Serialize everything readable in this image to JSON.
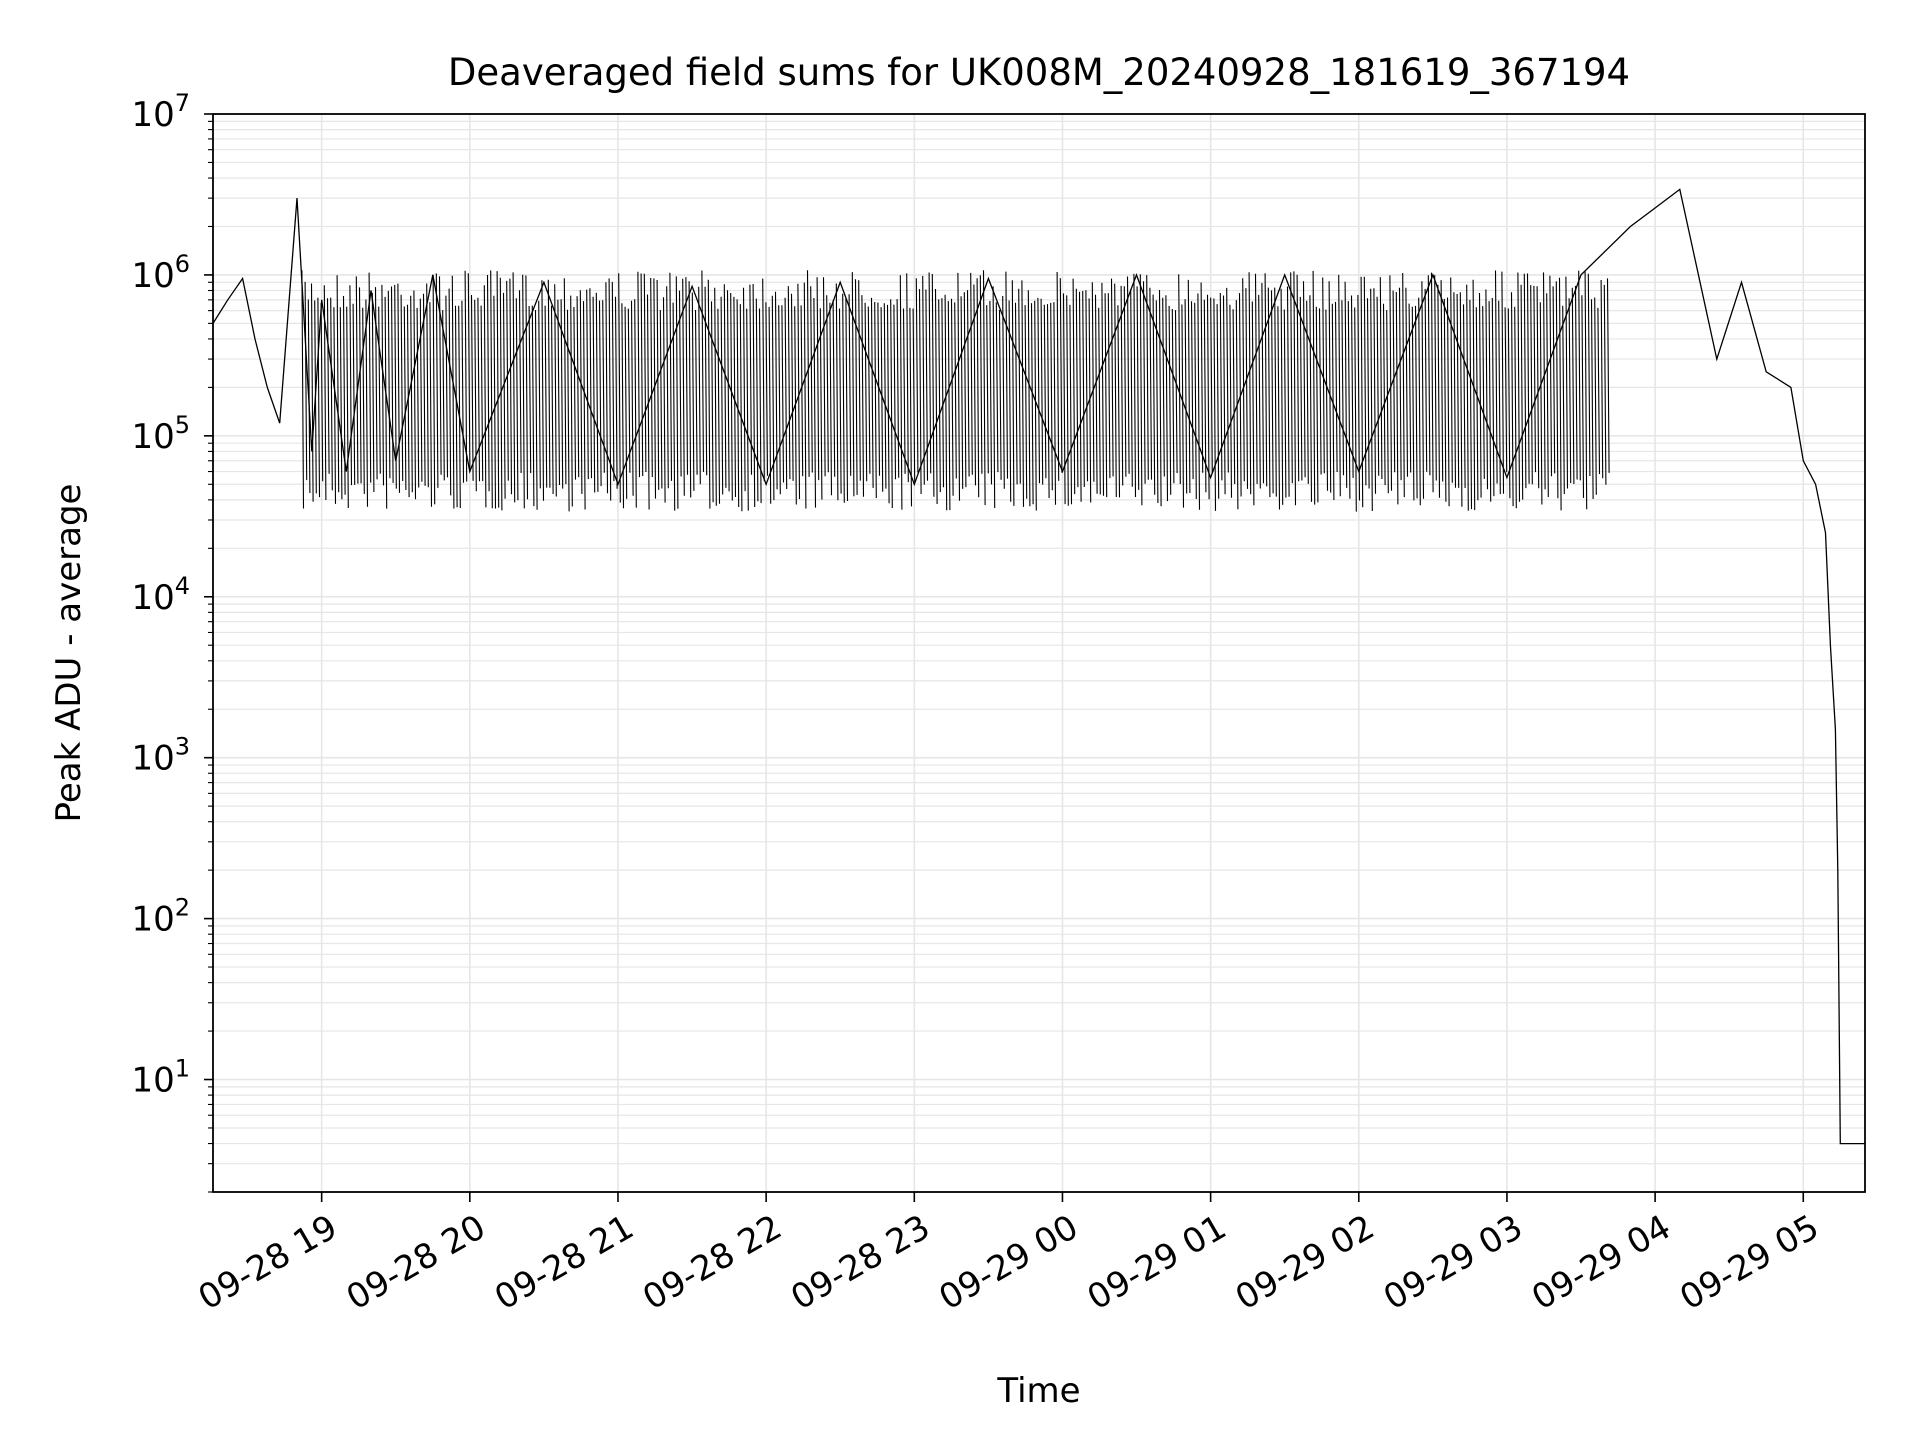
{
  "chart_data": {
    "type": "line",
    "title": "Deaveraged field sums for UK008M_20240928_181619_367194",
    "xlabel": "Time",
    "ylabel": "Peak ADU - average",
    "y_scale": "log",
    "ylim": [
      2,
      10000000
    ],
    "xlim": [
      "2024-09-28 18:16",
      "2024-09-29 05:25"
    ],
    "grid": true,
    "grid_color": "#e6e6e6",
    "line_color": "#000000",
    "x_ticks": [
      {
        "date": "2024-09-28 19:00",
        "label": "09-28 19"
      },
      {
        "date": "2024-09-28 20:00",
        "label": "09-28 20"
      },
      {
        "date": "2024-09-28 21:00",
        "label": "09-28 21"
      },
      {
        "date": "2024-09-28 22:00",
        "label": "09-28 22"
      },
      {
        "date": "2024-09-28 23:00",
        "label": "09-28 23"
      },
      {
        "date": "2024-09-29 00:00",
        "label": "09-29 00"
      },
      {
        "date": "2024-09-29 01:00",
        "label": "09-29 01"
      },
      {
        "date": "2024-09-29 02:00",
        "label": "09-29 02"
      },
      {
        "date": "2024-09-29 03:00",
        "label": "09-29 03"
      },
      {
        "date": "2024-09-29 04:00",
        "label": "09-29 04"
      },
      {
        "date": "2024-09-29 05:00",
        "label": "09-29 05"
      }
    ],
    "y_ticks": [
      {
        "value": 10,
        "base": "10",
        "exp": "1"
      },
      {
        "value": 100,
        "base": "10",
        "exp": "2"
      },
      {
        "value": 1000,
        "base": "10",
        "exp": "3"
      },
      {
        "value": 10000,
        "base": "10",
        "exp": "4"
      },
      {
        "value": 100000,
        "base": "10",
        "exp": "5"
      },
      {
        "value": 1000000,
        "base": "10",
        "exp": "6"
      },
      {
        "value": 10000000,
        "base": "10",
        "exp": "7"
      }
    ],
    "series": [
      {
        "x": [
          "2024-09-28 18:16",
          "2024-09-28 18:22",
          "2024-09-28 18:28",
          "2024-09-28 18:33",
          "2024-09-28 18:38",
          "2024-09-28 18:43",
          "2024-09-28 18:50",
          "2024-09-28 18:56",
          "2024-09-28 19:00",
          "2024-09-28 19:10",
          "2024-09-28 19:20",
          "2024-09-28 19:30",
          "2024-09-28 19:45",
          "2024-09-28 20:00",
          "2024-09-28 20:30",
          "2024-09-28 21:00",
          "2024-09-28 21:30",
          "2024-09-28 22:00",
          "2024-09-28 22:30",
          "2024-09-28 23:00",
          "2024-09-28 23:30",
          "2024-09-29 00:00",
          "2024-09-29 00:30",
          "2024-09-29 01:00",
          "2024-09-29 01:30",
          "2024-09-29 02:00",
          "2024-09-29 02:30",
          "2024-09-29 03:00",
          "2024-09-29 03:30",
          "2024-09-29 03:50",
          "2024-09-29 04:10",
          "2024-09-29 04:25",
          "2024-09-29 04:35",
          "2024-09-29 04:45",
          "2024-09-29 04:55",
          "2024-09-29 05:00",
          "2024-09-29 05:05",
          "2024-09-29 05:09",
          "2024-09-29 05:11",
          "2024-09-29 05:13",
          "2024-09-29 05:14",
          "2024-09-29 05:15",
          "2024-09-29 05:18",
          "2024-09-29 05:25"
        ],
        "y": [
          500000,
          700000,
          950000,
          400000,
          200000,
          120000,
          3000000,
          80000,
          700000,
          60000,
          800000,
          70000,
          1000000,
          60000,
          900000,
          50000,
          850000,
          50000,
          900000,
          50000,
          950000,
          60000,
          1000000,
          55000,
          1000000,
          60000,
          1000000,
          55000,
          1000000,
          2000000,
          3400000,
          300000,
          900000,
          250000,
          200000,
          70000,
          50000,
          25000,
          5000,
          1500,
          200,
          4,
          4,
          4
        ],
        "band_high": 900000,
        "band_low": 45000
      }
    ]
  }
}
